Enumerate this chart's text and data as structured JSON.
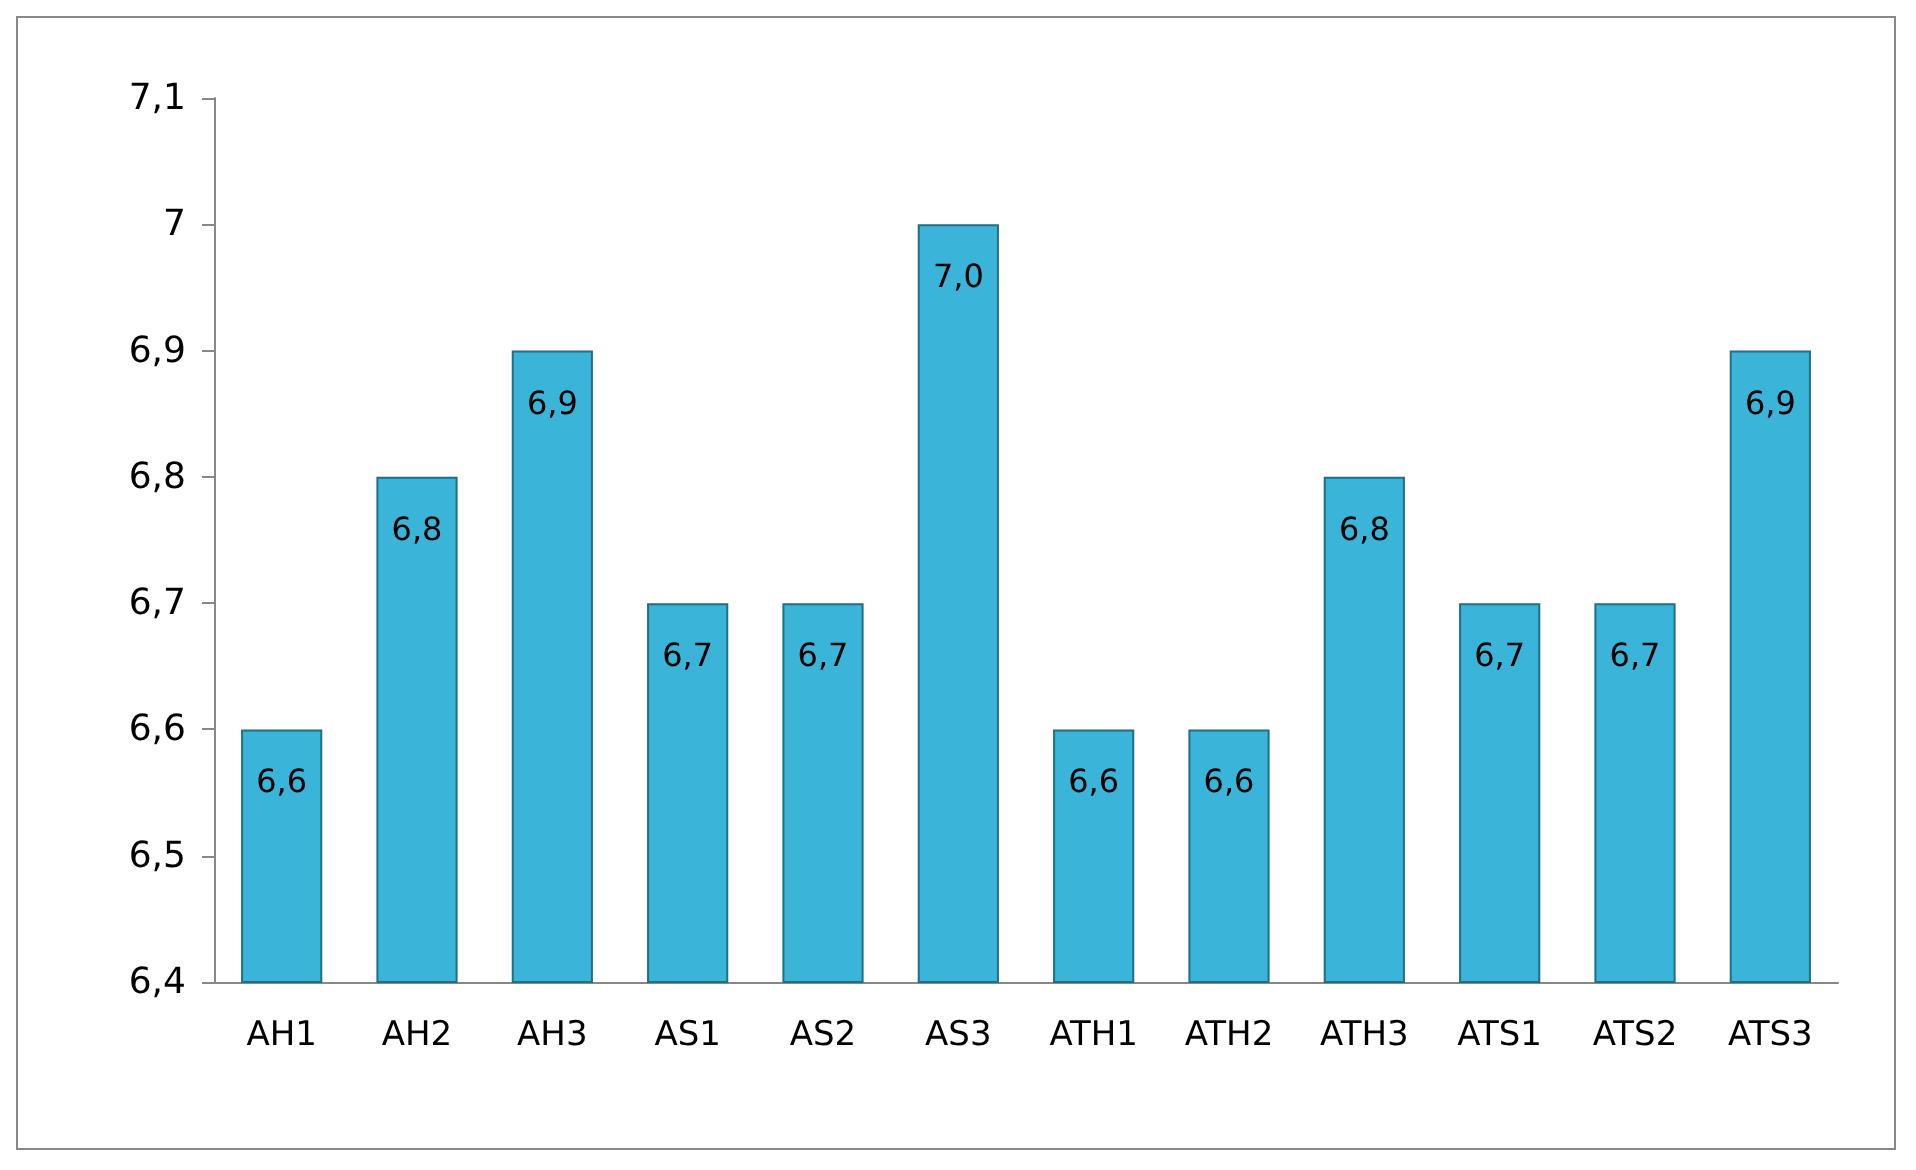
{
  "chart_data": {
    "type": "bar",
    "categories": [
      "AH1",
      "AH2",
      "AH3",
      "AS1",
      "AS2",
      "AS3",
      "ATH1",
      "ATH2",
      "ATH3",
      "ATS1",
      "ATS2",
      "ATS3"
    ],
    "values": [
      6.6,
      6.8,
      6.9,
      6.7,
      6.7,
      7.0,
      6.6,
      6.6,
      6.8,
      6.7,
      6.7,
      6.9
    ],
    "value_labels": [
      "6,6",
      "6,8",
      "6,9",
      "6,7",
      "6,7",
      "7,0",
      "6,6",
      "6,6",
      "6,8",
      "6,7",
      "6,7",
      "6,9"
    ],
    "color": "#3ab4d8",
    "ylim": [
      6.4,
      7.1
    ],
    "yticks": [
      {
        "value": 6.4,
        "label": "6,4"
      },
      {
        "value": 6.5,
        "label": "6,5"
      },
      {
        "value": 6.6,
        "label": "6,6"
      },
      {
        "value": 6.7,
        "label": "6,7"
      },
      {
        "value": 6.8,
        "label": "6,8"
      },
      {
        "value": 6.9,
        "label": "6,9"
      },
      7,
      {
        "value": 7.1,
        "label": "7,1"
      }
    ],
    "grid": false
  }
}
